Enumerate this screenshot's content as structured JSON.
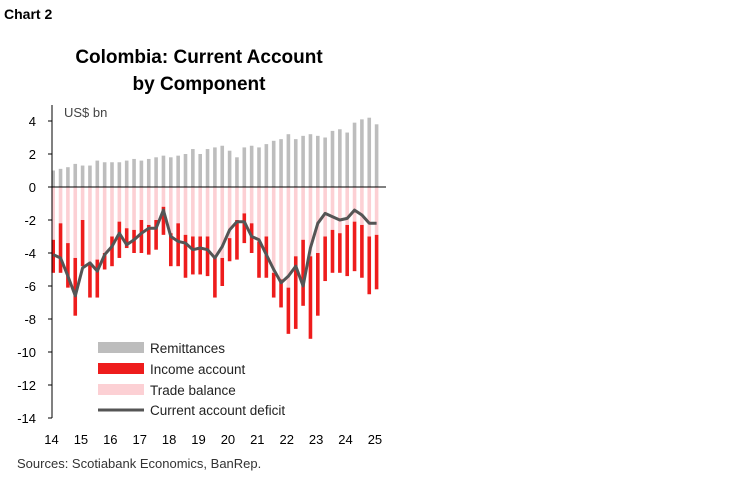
{
  "header": {
    "chart_label": "Chart 2"
  },
  "source": "Sources: Scotiabank Economics, BanRep.",
  "chart_data": {
    "type": "bar",
    "title": "Colombia: Current Account by Component",
    "title_lines": [
      "Colombia: Current Account",
      "by Component"
    ],
    "unit_label": "US$ bn",
    "xlabel": "",
    "ylabel": "",
    "ylim": [
      -14,
      4
    ],
    "y_ticks": [
      4,
      2,
      0,
      -2,
      -4,
      -6,
      -8,
      -10,
      -12,
      -14
    ],
    "x_tick_labels": [
      "14",
      "15",
      "16",
      "17",
      "18",
      "19",
      "20",
      "21",
      "22",
      "23",
      "24",
      "25"
    ],
    "x_tick_quarter_index": [
      0,
      4,
      8,
      12,
      16,
      20,
      24,
      28,
      32,
      36,
      40,
      44
    ],
    "quarters": [
      "14Q1",
      "14Q2",
      "14Q3",
      "14Q4",
      "15Q1",
      "15Q2",
      "15Q3",
      "15Q4",
      "16Q1",
      "16Q2",
      "16Q3",
      "16Q4",
      "17Q1",
      "17Q2",
      "17Q3",
      "17Q4",
      "18Q1",
      "18Q2",
      "18Q3",
      "18Q4",
      "19Q1",
      "19Q2",
      "19Q3",
      "19Q4",
      "20Q1",
      "20Q2",
      "20Q3",
      "20Q4",
      "21Q1",
      "21Q2",
      "21Q3",
      "21Q4",
      "22Q1",
      "22Q2",
      "22Q3",
      "22Q4",
      "23Q1",
      "23Q2",
      "23Q3",
      "23Q4",
      "24Q1",
      "24Q2",
      "24Q3",
      "24Q4",
      "25Q1"
    ],
    "series": [
      {
        "name": "Remittances",
        "color": "#bdbdbd",
        "values": [
          1.0,
          1.1,
          1.2,
          1.4,
          1.3,
          1.3,
          1.6,
          1.5,
          1.5,
          1.5,
          1.6,
          1.7,
          1.6,
          1.7,
          1.8,
          1.9,
          1.8,
          1.9,
          2.0,
          2.3,
          2.0,
          2.3,
          2.4,
          2.5,
          2.2,
          1.8,
          2.4,
          2.5,
          2.4,
          2.6,
          2.8,
          2.9,
          3.2,
          2.9,
          3.1,
          3.2,
          3.1,
          3.0,
          3.4,
          3.5,
          3.3,
          3.9,
          4.1,
          4.2,
          3.8
        ]
      },
      {
        "name": "Income account",
        "color": "#ee1c1c",
        "values": [
          -2.0,
          -3.0,
          -2.7,
          -3.5,
          -2.8,
          -2.0,
          -2.3,
          -1.0,
          -1.8,
          -2.2,
          -1.2,
          -1.4,
          -2.0,
          -1.8,
          -1.8,
          -1.7,
          -2.0,
          -2.6,
          -2.6,
          -2.3,
          -2.3,
          -2.4,
          -2.5,
          -1.7,
          -1.4,
          -2.4,
          -1.8,
          -1.8,
          -2.2,
          -2.5,
          -1.5,
          -1.7,
          -2.8,
          -4.4,
          -4.0,
          -5.0,
          -3.8,
          -2.7,
          -2.6,
          -2.4,
          -3.1,
          -3.0,
          -3.2,
          -3.5,
          -3.3
        ]
      },
      {
        "name": "Trade balance",
        "color": "#fcd0d4",
        "values": [
          -3.2,
          -2.2,
          -3.4,
          -4.3,
          -2.0,
          -4.7,
          -4.4,
          -4.0,
          -3.0,
          -2.1,
          -2.5,
          -2.6,
          -2.0,
          -2.3,
          -2.0,
          -1.2,
          -2.8,
          -2.2,
          -2.9,
          -3.0,
          -3.0,
          -3.0,
          -4.2,
          -4.3,
          -3.1,
          -2.0,
          -1.6,
          -2.2,
          -3.3,
          -3.0,
          -5.2,
          -5.6,
          -6.1,
          -4.2,
          -3.2,
          -4.2,
          -4.0,
          -3.0,
          -2.6,
          -2.8,
          -2.3,
          -2.1,
          -2.3,
          -3.0,
          -2.9
        ]
      },
      {
        "name": "Current account deficit",
        "color": "#555555",
        "type": "line",
        "values": [
          -4.1,
          -4.3,
          -5.4,
          -6.6,
          -4.9,
          -4.6,
          -5.1,
          -4.1,
          -3.6,
          -2.8,
          -3.5,
          -3.2,
          -2.8,
          -2.5,
          -2.5,
          -1.4,
          -3.0,
          -3.3,
          -3.4,
          -3.8,
          -3.7,
          -3.8,
          -4.3,
          -3.6,
          -2.6,
          -2.1,
          -2.1,
          -3.0,
          -3.2,
          -4.1,
          -5.0,
          -5.8,
          -5.4,
          -4.8,
          -6.0,
          -3.7,
          -2.2,
          -1.6,
          -1.8,
          -2.0,
          -1.9,
          -1.4,
          -1.7,
          -2.2,
          -2.2
        ]
      }
    ],
    "legend_position": "bottom-left inside plot",
    "grid": false
  }
}
